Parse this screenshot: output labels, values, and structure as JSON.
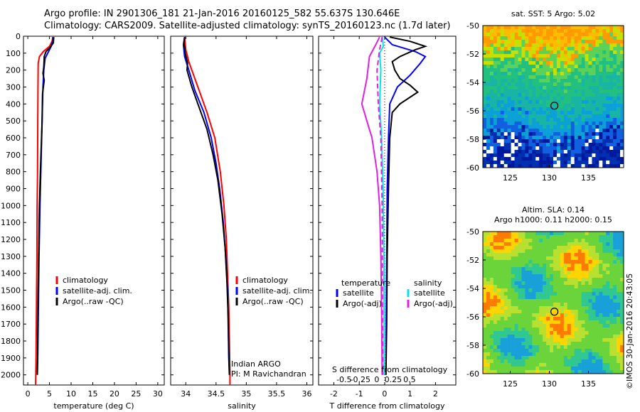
{
  "header": {
    "line1": "Argo profile: IN 2901306_181 21-Jan-2016 20160125_582 55.637S 130.646E",
    "line2": "Climatology: CARS2009. Satellite-adjusted climatology: synTS_20160123.nc (1.7d later)"
  },
  "colors": {
    "climatology": "#ff0000",
    "satellite": "#0000ff",
    "argo": "#000000",
    "cyan": "#00e5e5",
    "magenta": "#e020e0"
  },
  "depth_axis": {
    "ticks": [
      0,
      100,
      200,
      300,
      400,
      500,
      600,
      700,
      800,
      900,
      1000,
      1100,
      1200,
      1300,
      1400,
      1500,
      1600,
      1700,
      1800,
      1900,
      2000
    ],
    "ylim": [
      0,
      2060
    ]
  },
  "chart_data": [
    {
      "type": "line",
      "id": "temperature",
      "xlabel": "temperature (deg C)",
      "xlim": [
        -1,
        31.5
      ],
      "xticks": [
        0,
        5,
        10,
        15,
        20,
        25,
        30
      ],
      "legend": [
        "climatology",
        "satellite-adj. clim.",
        "Argo(..raw -QC)"
      ],
      "series": [
        {
          "name": "climatology",
          "color": "#ff0000",
          "style": "solid",
          "points": [
            [
              5.8,
              5
            ],
            [
              5.6,
              30
            ],
            [
              5.0,
              60
            ],
            [
              3.6,
              90
            ],
            [
              2.7,
              120
            ],
            [
              2.4,
              160
            ],
            [
              2.35,
              300
            ],
            [
              2.3,
              500
            ],
            [
              2.25,
              800
            ],
            [
              2.15,
              1000
            ],
            [
              2.1,
              1300
            ],
            [
              2.0,
              1600
            ],
            [
              1.9,
              1900
            ],
            [
              1.8,
              2060
            ]
          ]
        },
        {
          "name": "satellite-adj. clim.",
          "color": "#0000ff",
          "style": "solid",
          "points": [
            [
              5.8,
              5
            ],
            [
              5.7,
              30
            ],
            [
              5.4,
              60
            ],
            [
              4.8,
              90
            ],
            [
              4.0,
              130
            ],
            [
              3.7,
              200
            ],
            [
              3.5,
              300
            ],
            [
              3.3,
              500
            ],
            [
              3.0,
              800
            ],
            [
              2.8,
              1000
            ],
            [
              2.6,
              1300
            ],
            [
              2.45,
              1600
            ],
            [
              2.3,
              1900
            ],
            [
              2.2,
              2000
            ]
          ]
        },
        {
          "name": "Argo(..raw -QC)",
          "color": "#000000",
          "style": "solid",
          "points": [
            [
              6.0,
              5
            ],
            [
              5.9,
              40
            ],
            [
              5.0,
              70
            ],
            [
              4.2,
              90
            ],
            [
              3.8,
              120
            ],
            [
              3.7,
              180
            ],
            [
              3.5,
              220
            ],
            [
              3.8,
              260
            ],
            [
              3.4,
              340
            ],
            [
              3.3,
              500
            ],
            [
              2.9,
              800
            ],
            [
              2.7,
              1000
            ],
            [
              2.5,
              1300
            ],
            [
              2.35,
              1600
            ],
            [
              2.25,
              1900
            ],
            [
              2.2,
              2000
            ]
          ]
        }
      ]
    },
    {
      "type": "line",
      "id": "salinity",
      "xlabel": "salinity",
      "xlim": [
        33.75,
        36.1
      ],
      "xticks": [
        34,
        34.5,
        35,
        35.5,
        36
      ],
      "xticklabels": [
        "34",
        "34.5",
        "35",
        "35.5",
        "36"
      ],
      "legend": [
        "climatology",
        "satellite-adj. clim.",
        "Argo(..raw -QC)"
      ],
      "annotations": [
        "Indian ARGO",
        "PI: M Ravichandran"
      ],
      "series": [
        {
          "name": "climatology",
          "color": "#ff0000",
          "style": "solid",
          "points": [
            [
              33.98,
              5
            ],
            [
              34.0,
              80
            ],
            [
              34.05,
              150
            ],
            [
              34.2,
              300
            ],
            [
              34.35,
              450
            ],
            [
              34.48,
              600
            ],
            [
              34.57,
              800
            ],
            [
              34.63,
              1000
            ],
            [
              34.67,
              1200
            ],
            [
              34.69,
              1400
            ],
            [
              34.71,
              1600
            ],
            [
              34.72,
              1800
            ],
            [
              34.73,
              2000
            ],
            [
              34.73,
              2060
            ]
          ]
        },
        {
          "name": "satellite-adj. clim.",
          "color": "#0000ff",
          "style": "solid",
          "points": [
            [
              33.98,
              5
            ],
            [
              33.96,
              50
            ],
            [
              33.98,
              120
            ],
            [
              34.05,
              200
            ],
            [
              34.15,
              320
            ],
            [
              34.3,
              450
            ],
            [
              34.42,
              600
            ],
            [
              34.5,
              750
            ],
            [
              34.56,
              900
            ],
            [
              34.62,
              1100
            ],
            [
              34.66,
              1300
            ],
            [
              34.69,
              1500
            ],
            [
              34.7,
              1700
            ],
            [
              34.71,
              1900
            ],
            [
              34.72,
              2000
            ]
          ]
        },
        {
          "name": "Argo(..raw -QC)",
          "color": "#000000",
          "style": "solid",
          "points": [
            [
              33.98,
              5
            ],
            [
              33.97,
              40
            ],
            [
              33.99,
              100
            ],
            [
              34.03,
              160
            ],
            [
              34.02,
              200
            ],
            [
              34.06,
              250
            ],
            [
              34.1,
              300
            ],
            [
              34.2,
              400
            ],
            [
              34.35,
              550
            ],
            [
              34.45,
              700
            ],
            [
              34.53,
              850
            ],
            [
              34.6,
              1050
            ],
            [
              34.65,
              1250
            ],
            [
              34.68,
              1450
            ],
            [
              34.7,
              1650
            ],
            [
              34.71,
              1850
            ],
            [
              34.72,
              2000
            ]
          ]
        }
      ]
    },
    {
      "type": "line",
      "id": "difference",
      "xlabel": "T difference from climatology",
      "top_label": "S difference from climatology",
      "xlim": [
        -2.6,
        2.8
      ],
      "xticks": [
        -2,
        -1,
        0,
        1,
        2
      ],
      "top_ticks": [
        -0.5,
        -0.25,
        0,
        0.25,
        0.5
      ],
      "top_ticklabels": [
        "-0.5",
        "-0.25",
        "0",
        "0.25",
        "0.5"
      ],
      "legend_left_title": "temperature",
      "legend_right_title": "salinity",
      "legend_left": [
        "satellite",
        "Argo(-adj)"
      ],
      "legend_right": [
        "satellite",
        "Argo(-adj)"
      ],
      "series": [
        {
          "name": "T satellite",
          "color": "#0000ff",
          "style": "solid",
          "points": [
            [
              0.0,
              5
            ],
            [
              0.3,
              50
            ],
            [
              1.2,
              90
            ],
            [
              1.6,
              120
            ],
            [
              1.4,
              160
            ],
            [
              1.0,
              230
            ],
            [
              0.5,
              300
            ],
            [
              0.2,
              400
            ],
            [
              0.15,
              600
            ],
            [
              0.1,
              900
            ],
            [
              0.08,
              1300
            ],
            [
              0.06,
              1700
            ],
            [
              0.05,
              2000
            ]
          ]
        },
        {
          "name": "T Argo(-adj)",
          "color": "#000000",
          "style": "solid",
          "points": [
            [
              0.2,
              5
            ],
            [
              1.0,
              30
            ],
            [
              1.6,
              60
            ],
            [
              1.2,
              80
            ],
            [
              0.6,
              120
            ],
            [
              0.3,
              150
            ],
            [
              0.4,
              200
            ],
            [
              0.6,
              250
            ],
            [
              1.0,
              290
            ],
            [
              1.3,
              330
            ],
            [
              0.6,
              400
            ],
            [
              0.3,
              450
            ],
            [
              0.2,
              600
            ],
            [
              0.15,
              900
            ],
            [
              0.1,
              1300
            ],
            [
              0.08,
              1700
            ],
            [
              0.05,
              2000
            ]
          ]
        },
        {
          "name": "S satellite",
          "color": "#00e5e5",
          "style": "solid",
          "points": [
            [
              -0.1,
              5
            ],
            [
              -0.05,
              60
            ],
            [
              -0.2,
              100
            ],
            [
              -0.15,
              200
            ],
            [
              -0.2,
              400
            ],
            [
              -0.12,
              600
            ],
            [
              -0.06,
              900
            ],
            [
              -0.03,
              1300
            ],
            [
              -0.02,
              1700
            ],
            [
              -0.02,
              2000
            ]
          ]
        },
        {
          "name": "S Argo(-adj)",
          "color": "#e020e0",
          "style": "solid",
          "points": [
            [
              -0.2,
              5
            ],
            [
              -0.35,
              50
            ],
            [
              -0.6,
              120
            ],
            [
              -0.7,
              250
            ],
            [
              -0.9,
              400
            ],
            [
              -0.7,
              500
            ],
            [
              -0.5,
              600
            ],
            [
              -0.3,
              800
            ],
            [
              -0.2,
              1000
            ],
            [
              -0.15,
              1300
            ],
            [
              -0.12,
              1600
            ],
            [
              -0.1,
              2000
            ]
          ]
        },
        {
          "name": "S Argo(-adj) dashed",
          "color": "#e020e0",
          "style": "dash",
          "points": [
            [
              -0.1,
              5
            ],
            [
              -0.2,
              80
            ],
            [
              -0.3,
              200
            ],
            [
              -0.25,
              400
            ],
            [
              -0.15,
              600
            ],
            [
              -0.1,
              1000
            ],
            [
              -0.08,
              2000
            ]
          ]
        }
      ]
    },
    {
      "type": "heatmap",
      "id": "sst_map",
      "title": "sat. SST: 5 Argo: 5.02",
      "xticks": [
        125,
        130,
        135
      ],
      "yticks": [
        -50,
        -52,
        -54,
        -56,
        -58,
        -60
      ],
      "xlim": [
        121.5,
        139.5
      ],
      "ylim": [
        -60,
        -50
      ],
      "marker": {
        "lon": 130.646,
        "lat": -55.637
      }
    },
    {
      "type": "heatmap",
      "id": "sla_map",
      "title": "Altim. SLA: 0.14",
      "subtitle": "Argo h1000: 0.11 h2000: 0.15",
      "xticks": [
        125,
        130,
        135
      ],
      "yticks": [
        -50,
        -52,
        -54,
        -56,
        -58,
        -60
      ],
      "xlim": [
        121.5,
        139.5
      ],
      "ylim": [
        -60,
        -50
      ],
      "marker": {
        "lon": 130.646,
        "lat": -55.637
      }
    }
  ],
  "footer": {
    "credit": "©IMOS 30-Jan-2016 20:43:05"
  }
}
